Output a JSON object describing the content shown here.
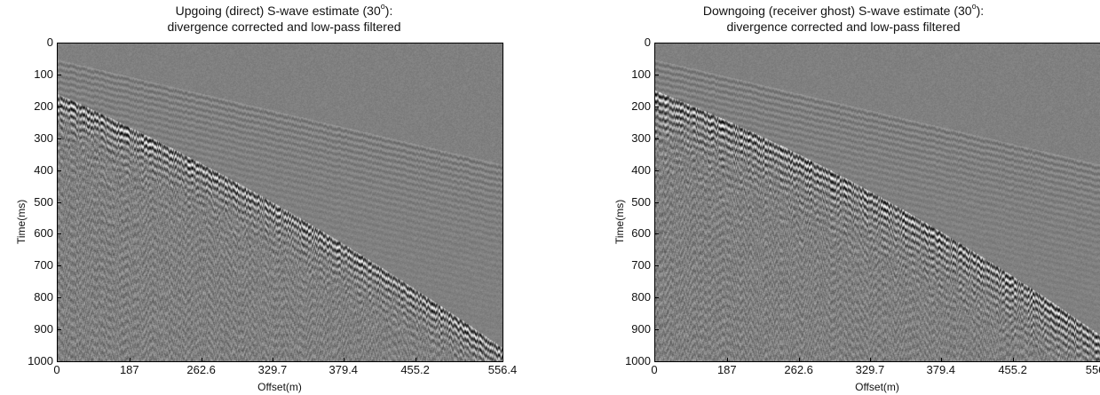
{
  "chart_data": [
    {
      "type": "heatmap",
      "title_line1": "Upgoing (direct) S-wave estimate (30",
      "title_degree": "o",
      "title_line1_end": "):",
      "title_line2": "divergence corrected and low-pass filtered",
      "xlabel": "Offset(m)",
      "ylabel": "Time(ms)",
      "xticks": [
        "0",
        "187",
        "262.6",
        "329.7",
        "379.4",
        "455.2",
        "556.4"
      ],
      "yticks": [
        "0",
        "100",
        "200",
        "300",
        "400",
        "500",
        "600",
        "700",
        "800",
        "900",
        "1000"
      ],
      "ylim": [
        0,
        1000
      ],
      "colormap": "grayscale seismic wiggle-density",
      "y_reversed": true
    },
    {
      "type": "heatmap",
      "title_line1": "Downgoing (receiver ghost) S-wave estimate (30",
      "title_degree": "o",
      "title_line1_end": "):",
      "title_line2": "divergence corrected and low-pass filtered",
      "xlabel": "Offset(m)",
      "ylabel": "Time(ms)",
      "xticks": [
        "0",
        "187",
        "262.6",
        "329.7",
        "379.4",
        "455.2",
        "556.4"
      ],
      "yticks": [
        "0",
        "100",
        "200",
        "300",
        "400",
        "500",
        "600",
        "700",
        "800",
        "900",
        "1000"
      ],
      "ylim": [
        0,
        1000
      ],
      "colormap": "grayscale seismic wiggle-density",
      "y_reversed": true
    }
  ]
}
